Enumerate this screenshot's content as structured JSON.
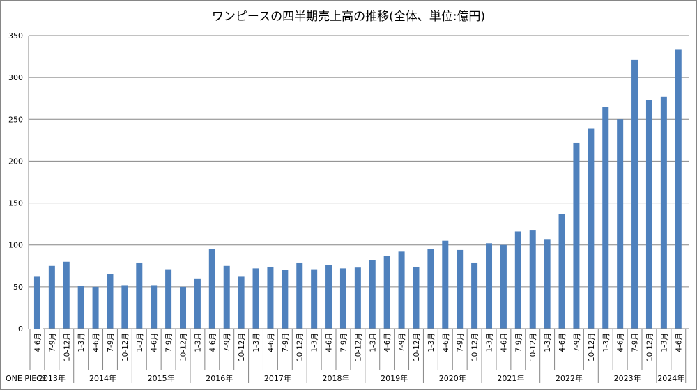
{
  "chart_data": {
    "type": "bar",
    "title": "ワンピースの四半期売上高の推移(全体、単位:億円)",
    "row_label": "ONE PIECE",
    "ylim": [
      0,
      350
    ],
    "yticks": [
      0,
      50,
      100,
      150,
      200,
      250,
      300,
      350
    ],
    "grid": true,
    "legend": "none",
    "bar_color": "#4f81bd",
    "categories": [
      "4-6月",
      "7-9月",
      "10-12月",
      "1-3月",
      "4-6月",
      "7-9月",
      "10-12月",
      "1-3月",
      "4-6月",
      "7-9月",
      "10-12月",
      "1-3月",
      "4-6月",
      "7-9月",
      "10-12月",
      "1-3月",
      "4-6月",
      "7-9月",
      "10-12月",
      "1-3月",
      "4-6月",
      "7-9月",
      "10-12月",
      "1-3月",
      "4-6月",
      "7-9月",
      "10-12月",
      "1-3月",
      "4-6月",
      "7-9月",
      "10-12月",
      "1-3月",
      "4-6月",
      "7-9月",
      "10-12月",
      "1-3月",
      "4-6月",
      "7-9月",
      "10-12月",
      "1-3月",
      "4-6月",
      "7-9月",
      "10-12月",
      "1-3月",
      "4-6月"
    ],
    "values": [
      62,
      75,
      80,
      51,
      50,
      65,
      52,
      79,
      52,
      71,
      50,
      60,
      95,
      75,
      62,
      72,
      74,
      70,
      79,
      71,
      76,
      72,
      73,
      82,
      87,
      92,
      74,
      95,
      105,
      94,
      79,
      102,
      100,
      116,
      118,
      107,
      137,
      222,
      239,
      265,
      250,
      321,
      273,
      277,
      333
    ],
    "years": [
      {
        "label": "2013年",
        "count": 3
      },
      {
        "label": "2014年",
        "count": 4
      },
      {
        "label": "2015年",
        "count": 4
      },
      {
        "label": "2016年",
        "count": 4
      },
      {
        "label": "2017年",
        "count": 4
      },
      {
        "label": "2018年",
        "count": 4
      },
      {
        "label": "2019年",
        "count": 4
      },
      {
        "label": "2020年",
        "count": 4
      },
      {
        "label": "2021年",
        "count": 4
      },
      {
        "label": "2022年",
        "count": 4
      },
      {
        "label": "2023年",
        "count": 4
      },
      {
        "label": "2024年",
        "count": 2
      }
    ]
  }
}
